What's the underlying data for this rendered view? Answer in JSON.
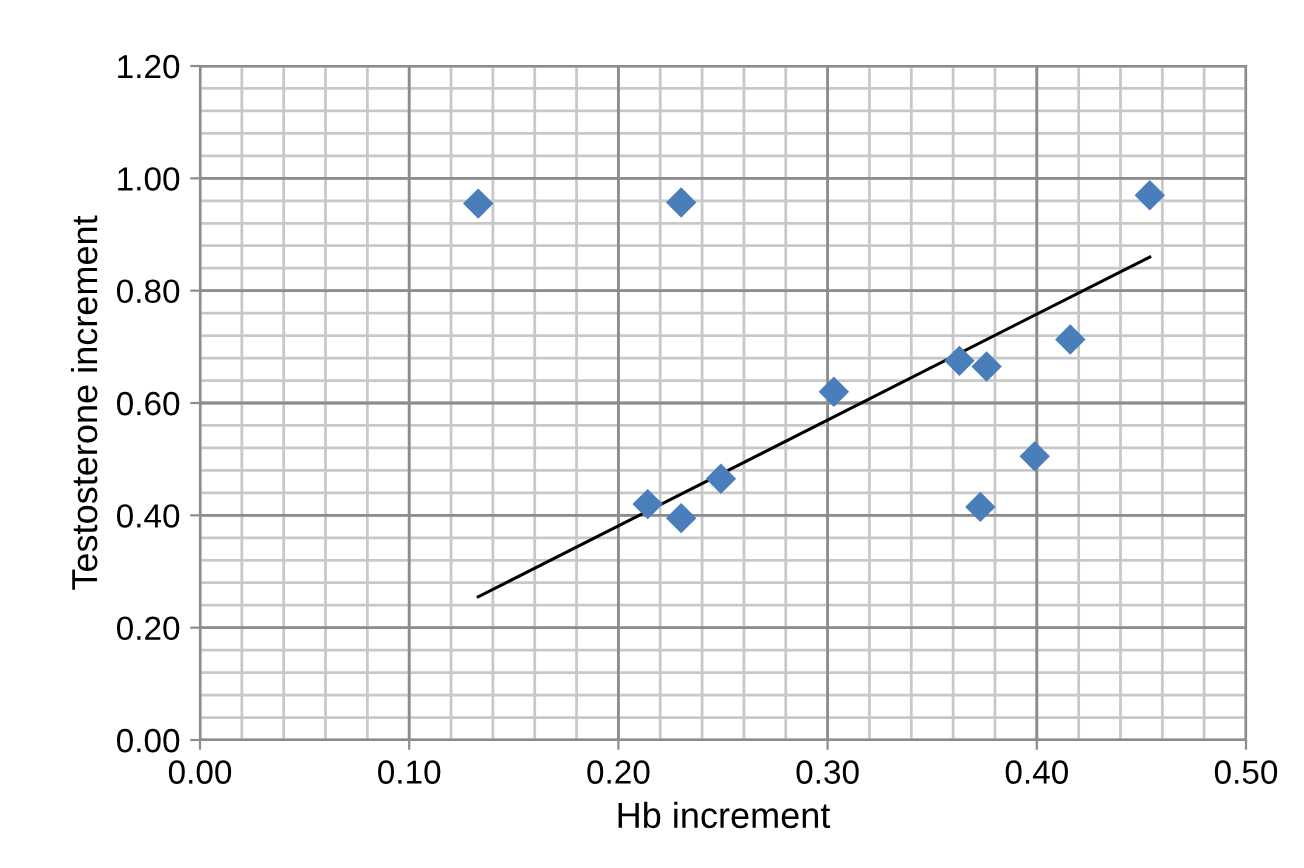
{
  "chart_data": {
    "type": "scatter",
    "xlabel": "Hb increment",
    "ylabel": "Testosterone increment",
    "xlim": [
      0,
      0.5
    ],
    "ylim": [
      0,
      1.2
    ],
    "xticks": [
      {
        "value": 0,
        "label": "0.00"
      },
      {
        "value": 0.1,
        "label": "0.10"
      },
      {
        "value": 0.2,
        "label": "0.20"
      },
      {
        "value": 0.3,
        "label": "0.30"
      },
      {
        "value": 0.4,
        "label": "0.40"
      },
      {
        "value": 0.5,
        "label": "0.50"
      }
    ],
    "yticks": [
      {
        "value": 0,
        "label": "0.00"
      },
      {
        "value": 0.2,
        "label": "0.20"
      },
      {
        "value": 0.4,
        "label": "0.40"
      },
      {
        "value": 0.6,
        "label": "0.60"
      },
      {
        "value": 0.8,
        "label": "0.80"
      },
      {
        "value": 1.0,
        "label": "1.00"
      },
      {
        "value": 1.2,
        "label": "1.20"
      }
    ],
    "grid": true,
    "marker": "diamond",
    "series": [
      {
        "color": "#4a7ebb",
        "x": [
          0.133,
          0.23,
          0.454,
          0.214,
          0.23,
          0.249,
          0.303,
          0.363,
          0.376,
          0.416,
          0.399,
          0.373
        ],
        "values": [
          0.955,
          0.957,
          0.97,
          0.42,
          0.395,
          0.465,
          0.62,
          0.675,
          0.665,
          0.713,
          0.505,
          0.415
        ]
      },
      {
        "type": "line",
        "color": "#000000",
        "marker": "none",
        "line_style": "solid",
        "x": [
          0.133,
          0.454
        ],
        "values": [
          0.255,
          0.86
        ]
      }
    ]
  }
}
